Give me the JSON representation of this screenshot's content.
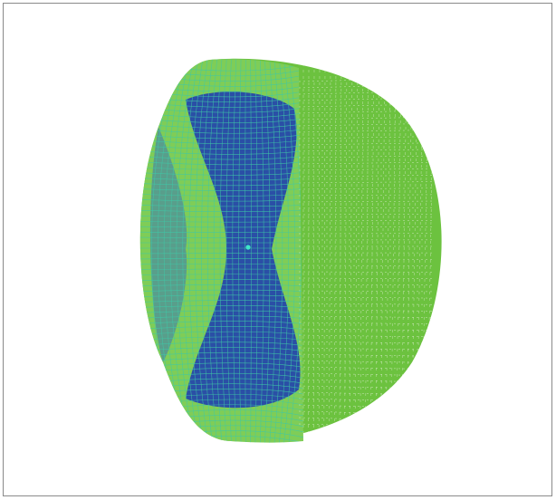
{
  "figure": {
    "subject": "3d-mesh-hemisphere",
    "colors": {
      "background": "#ffffff",
      "border": "#8a8a8a",
      "shell_green": "#6cc23f",
      "mesh_line": "#3ec9a7",
      "core_blue": "#2a4fa6",
      "center_point": "#3ee6c8"
    }
  }
}
